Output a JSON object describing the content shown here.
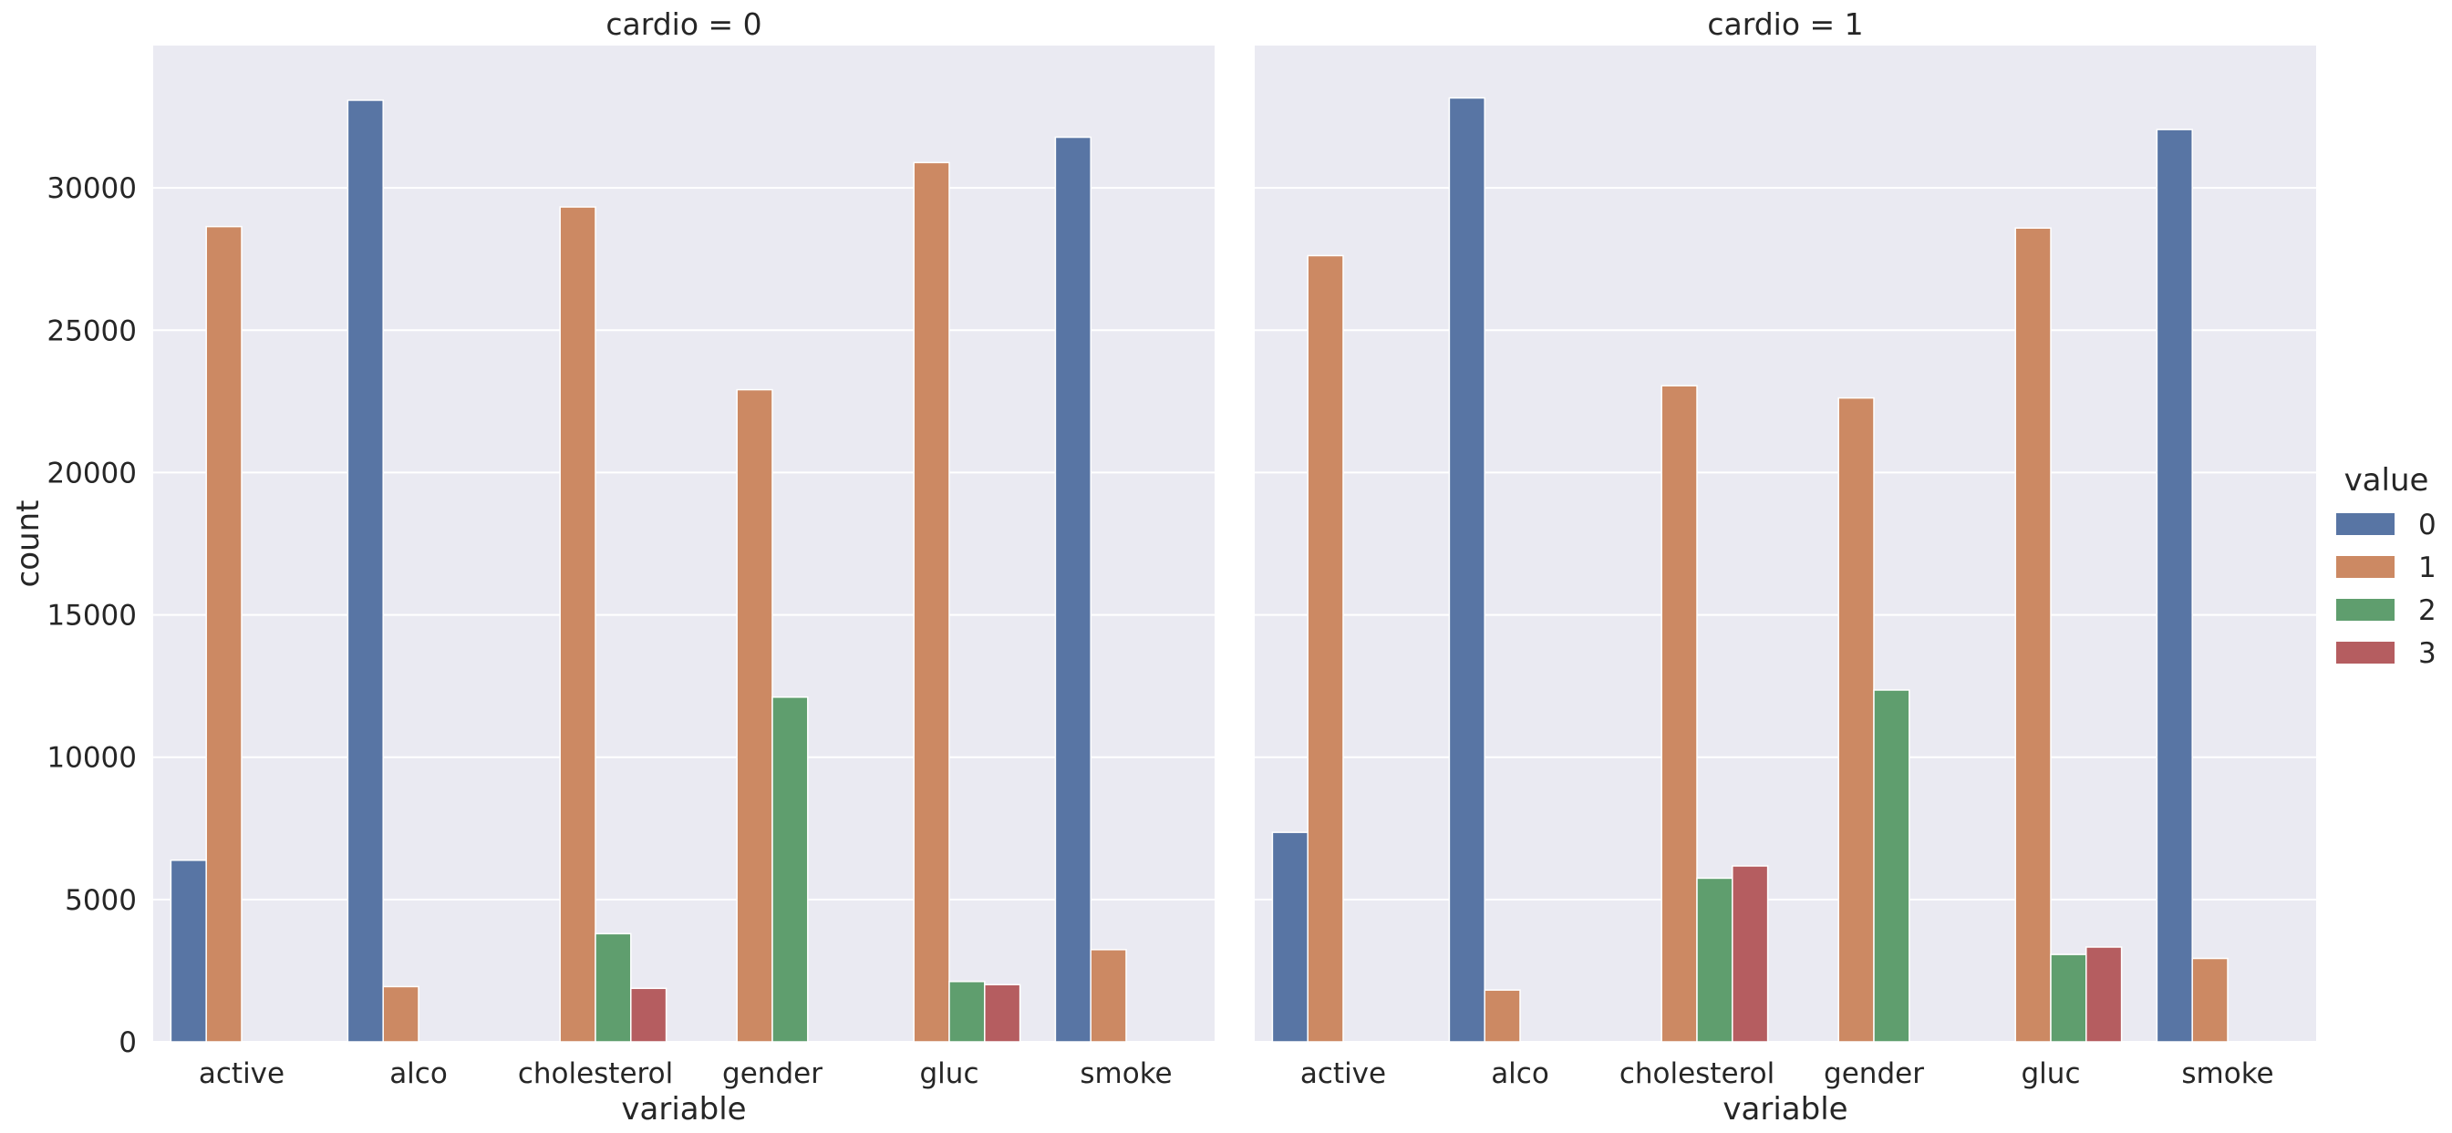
{
  "chart_data": {
    "type": "bar",
    "title": "",
    "xlabel": "variable",
    "ylabel": "count",
    "ylim": [
      0,
      35000
    ],
    "yticks": [
      0,
      5000,
      10000,
      15000,
      20000,
      25000,
      30000
    ],
    "grid": true,
    "categories": [
      "active",
      "alco",
      "cholesterol",
      "gender",
      "gluc",
      "smoke"
    ],
    "legend": {
      "title": "value",
      "position": "right",
      "entries": [
        "0",
        "1",
        "2",
        "3"
      ]
    },
    "colors": {
      "0": "#5875a4",
      "1": "#cc8963",
      "2": "#5f9e6e",
      "3": "#b55d60"
    },
    "plot_background": "#eaeaf2",
    "panels": [
      {
        "title": "cardio = 0",
        "series": [
          {
            "name": "0",
            "values": [
              6380,
              33080,
              null,
              null,
              null,
              31780
            ]
          },
          {
            "name": "1",
            "values": [
              28640,
              1940,
              29330,
              22910,
              30890,
              3240
            ]
          },
          {
            "name": "2",
            "values": [
              null,
              null,
              3800,
              12110,
              2120,
              null
            ]
          },
          {
            "name": "3",
            "values": [
              null,
              null,
              1880,
              null,
              2010,
              null
            ]
          }
        ]
      },
      {
        "title": "cardio = 1",
        "series": [
          {
            "name": "0",
            "values": [
              7360,
              33160,
              null,
              null,
              null,
              32050
            ]
          },
          {
            "name": "1",
            "values": [
              27620,
              1820,
              23050,
              22620,
              28590,
              2930
            ]
          },
          {
            "name": "2",
            "values": [
              null,
              null,
              5750,
              12360,
              3070,
              null
            ]
          },
          {
            "name": "3",
            "values": [
              null,
              null,
              6180,
              null,
              3330,
              null
            ]
          }
        ]
      }
    ]
  }
}
